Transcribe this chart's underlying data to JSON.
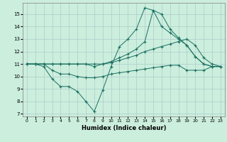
{
  "xlabel": "Humidex (Indice chaleur)",
  "background_color": "#cceedd",
  "grid_color": "#aacccc",
  "line_color": "#1a7060",
  "xlim": [
    -0.5,
    23.5
  ],
  "ylim": [
    6.8,
    15.9
  ],
  "yticks": [
    7,
    8,
    9,
    10,
    11,
    12,
    13,
    14,
    15
  ],
  "xticks": [
    0,
    1,
    2,
    3,
    4,
    5,
    6,
    7,
    8,
    9,
    10,
    11,
    12,
    13,
    14,
    15,
    16,
    17,
    18,
    19,
    20,
    21,
    22,
    23
  ],
  "lines": [
    {
      "x": [
        0,
        1,
        2,
        3,
        4,
        5,
        6,
        7,
        8,
        9,
        10,
        11,
        12,
        13,
        14,
        15,
        16,
        17,
        18,
        19,
        20,
        21,
        22,
        23
      ],
      "y": [
        11,
        11,
        10.8,
        9.8,
        9.2,
        9.2,
        8.8,
        8.0,
        7.2,
        8.9,
        10.8,
        12.4,
        13.0,
        13.8,
        15.5,
        15.3,
        15.0,
        13.8,
        13.1,
        12.5,
        11.6,
        11.0,
        10.8,
        10.8
      ]
    },
    {
      "x": [
        0,
        1,
        2,
        3,
        4,
        5,
        6,
        7,
        8,
        9,
        10,
        11,
        12,
        13,
        14,
        15,
        16,
        17,
        18,
        19,
        20,
        21,
        22,
        23
      ],
      "y": [
        11,
        11,
        11,
        11,
        11,
        11,
        11,
        11,
        10.8,
        11,
        11.2,
        11.5,
        11.8,
        12.2,
        12.8,
        15.3,
        14.0,
        13.5,
        13.0,
        12.5,
        11.6,
        11.0,
        10.8,
        10.8
      ]
    },
    {
      "x": [
        0,
        1,
        2,
        3,
        4,
        5,
        6,
        7,
        8,
        9,
        10,
        11,
        12,
        13,
        14,
        15,
        16,
        17,
        18,
        19,
        20,
        21,
        22,
        23
      ],
      "y": [
        11,
        11,
        11,
        11,
        11,
        11,
        11,
        11,
        11,
        11,
        11.1,
        11.3,
        11.5,
        11.7,
        12.0,
        12.2,
        12.4,
        12.6,
        12.8,
        13.0,
        12.5,
        11.5,
        11.0,
        10.8
      ]
    },
    {
      "x": [
        0,
        1,
        2,
        3,
        4,
        5,
        6,
        7,
        8,
        9,
        10,
        11,
        12,
        13,
        14,
        15,
        16,
        17,
        18,
        19,
        20,
        21,
        22,
        23
      ],
      "y": [
        11,
        11,
        11,
        10.5,
        10.2,
        10.2,
        10.0,
        9.9,
        9.9,
        10.0,
        10.2,
        10.3,
        10.4,
        10.5,
        10.6,
        10.7,
        10.8,
        10.9,
        10.9,
        10.5,
        10.5,
        10.5,
        10.8,
        10.8
      ]
    }
  ]
}
